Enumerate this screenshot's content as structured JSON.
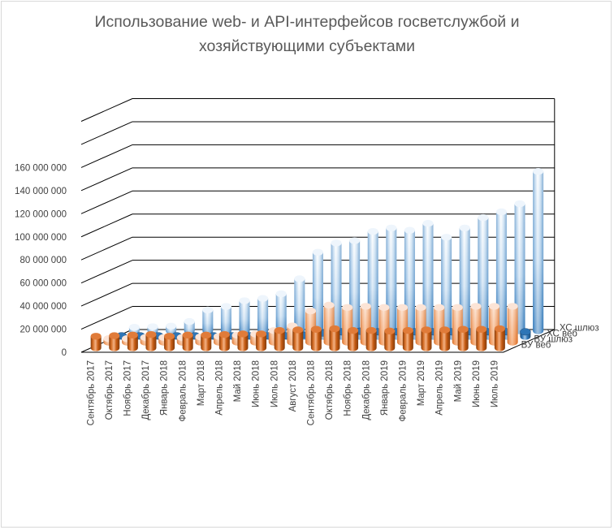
{
  "chart_data": {
    "type": "bar",
    "subtype": "3d-column-depth",
    "title": "Использование web- и API-интерфейсов госветслужбой и хозяйствующими субъектами",
    "categories": [
      "Сентябрь 2017",
      "Октябрь 2017",
      "Ноябрь 2017",
      "Декабрь 2017",
      "Январь 2018",
      "Февраль 2018",
      "Март 2018",
      "Апрель 2018",
      "Май 2018",
      "Июнь 2018",
      "Июль 2018",
      "Август 2018",
      "Сентябрь 2018",
      "Октябрь 2018",
      "Ноябрь 2018",
      "Декабрь 2018",
      "Январь 2019",
      "Февраль 2019",
      "Март 2019",
      "Апрель 2019",
      "Май 2019",
      "Июнь 2019",
      "Июль 2019"
    ],
    "y_ticks": [
      "0",
      "20 000 000",
      "40 000 000",
      "60 000 000",
      "80 000 000",
      "100 000 000",
      "120 000 000",
      "140 000 000",
      "160 000 000"
    ],
    "ylim": [
      0,
      160000000
    ],
    "grid": true,
    "series": [
      {
        "name": "ВУ веб",
        "color": "#c55a11",
        "values": [
          10000000,
          10500000,
          11000000,
          11500000,
          10000000,
          11000000,
          11000000,
          11500000,
          12000000,
          12000000,
          15000000,
          15500000,
          16000000,
          16500000,
          15000000,
          15000000,
          14500000,
          15000000,
          15500000,
          15500000,
          16000000,
          16000000,
          16500000
        ]
      },
      {
        "name": "ВУ шлюз",
        "color": "#f4b183",
        "values": [
          3000000,
          3000000,
          4000000,
          4000000,
          4000000,
          4500000,
          5000000,
          6000000,
          7000000,
          10000000,
          14000000,
          27000000,
          32000000,
          30000000,
          31000000,
          30000000,
          30000000,
          30000000,
          30000000,
          30000000,
          31000000,
          31000000,
          31000000
        ]
      },
      {
        "name": "ХС веб",
        "color": "#2e75b6",
        "values": [
          500000,
          500000,
          500000,
          500000,
          500000,
          500000,
          500000,
          500000,
          500000,
          500000,
          1000000,
          3000000,
          4000000,
          4500000,
          4000000,
          4000000,
          4000000,
          4000000,
          4000000,
          4000000,
          4000000,
          4000000,
          4000000
        ]
      },
      {
        "name": "ХС шлюз",
        "color": "#9dc3e6",
        "values": [
          3000000,
          3500000,
          4000000,
          8000000,
          18000000,
          21000000,
          26000000,
          28000000,
          32000000,
          45000000,
          68000000,
          76000000,
          78000000,
          86000000,
          89000000,
          87000000,
          93000000,
          81000000,
          89000000,
          98000000,
          103000000,
          110000000,
          138000000
        ]
      }
    ]
  }
}
